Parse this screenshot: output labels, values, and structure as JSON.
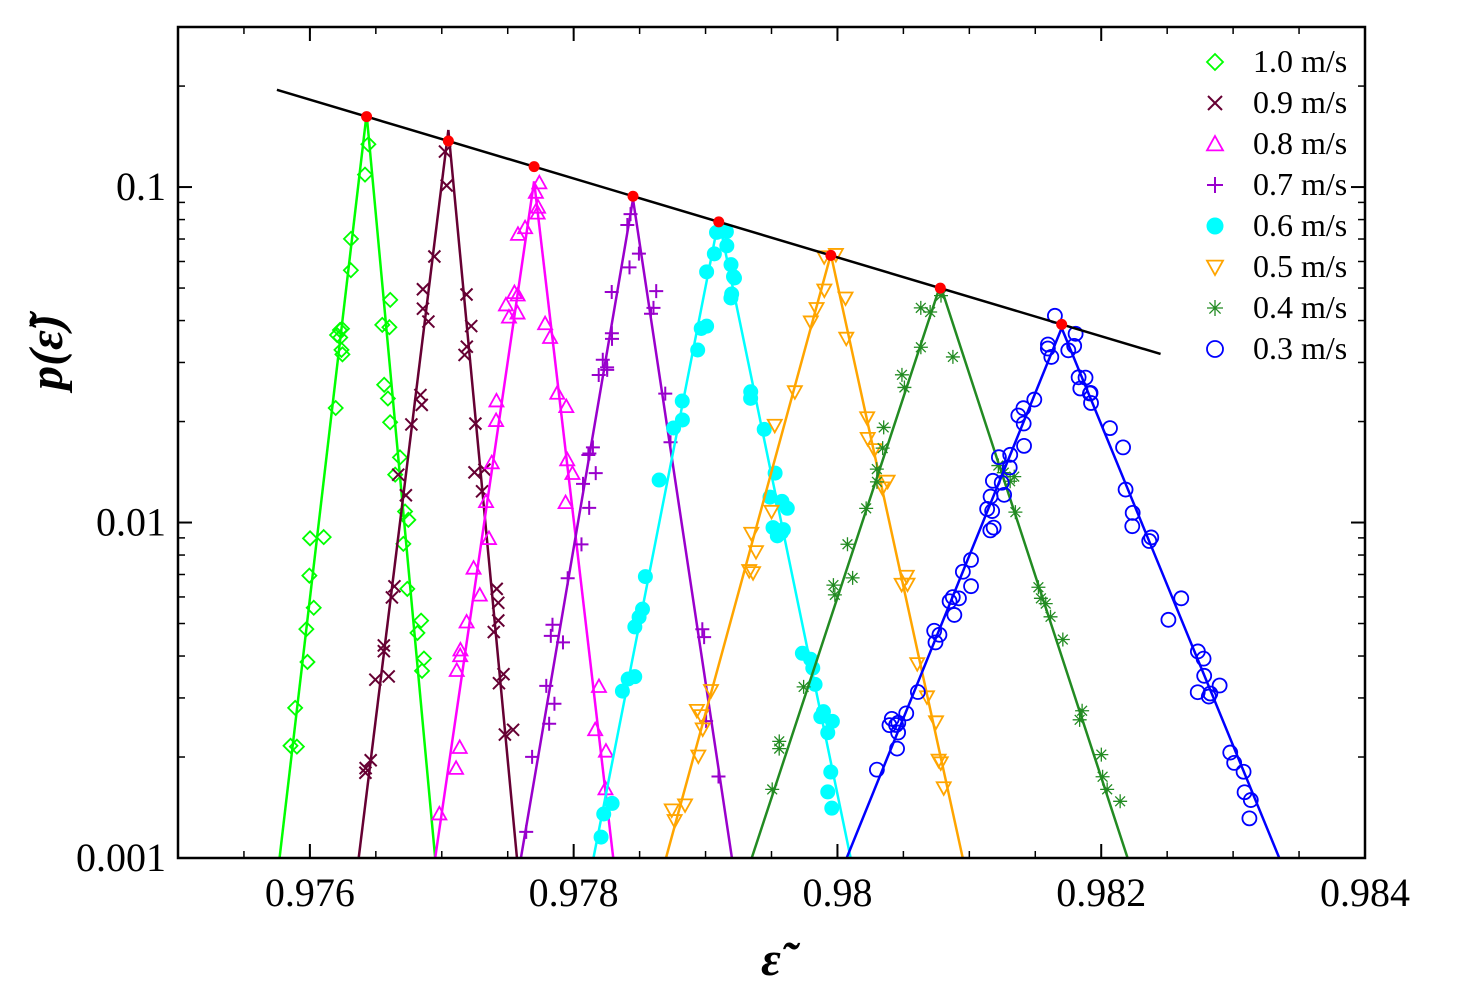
{
  "chart_data": {
    "type": "scatter",
    "xlabel": "ε̃",
    "ylabel": "p(ε̃)",
    "xlim": [
      0.975,
      0.984
    ],
    "ylim": [
      0.001,
      0.3
    ],
    "yscale": "log",
    "x_ticks": [
      0.976,
      0.978,
      0.98,
      0.982,
      0.984
    ],
    "x_tick_labels": [
      "0.976",
      "0.978",
      "0.98",
      "0.982",
      "0.984"
    ],
    "y_ticks": [
      0.001,
      0.01,
      0.1
    ],
    "y_tick_labels": [
      "0.001",
      "0.01",
      "0.1"
    ],
    "grid": false,
    "legend_position": "top-right",
    "envelope_line": {
      "color": "#000000",
      "x": [
        0.97575,
        0.98245
      ],
      "y": [
        0.195,
        0.0318
      ]
    },
    "peak_markers_color": "#ff0000",
    "series": [
      {
        "name": "1.0 m/s",
        "color": "#00ff00",
        "marker": "diamond",
        "peak_x": 0.97643,
        "peak_y": 0.165,
        "left_x0": 0.97577,
        "right_x0": 0.97695
      },
      {
        "name": "0.9 m/s",
        "color": "#660033",
        "marker": "x",
        "peak_x": 0.97705,
        "peak_y": 0.148,
        "left_x0": 0.97637,
        "right_x0": 0.97757
      },
      {
        "name": "0.8 m/s",
        "color": "#ff00ff",
        "marker": "triangle",
        "peak_x": 0.9777,
        "peak_y": 0.104,
        "left_x0": 0.97695,
        "right_x0": 0.9783
      },
      {
        "name": "0.7 m/s",
        "color": "#9900cc",
        "marker": "plus",
        "peak_x": 0.97845,
        "peak_y": 0.092,
        "left_x0": 0.9776,
        "right_x0": 0.9792
      },
      {
        "name": "0.6 m/s",
        "color": "#00ffff",
        "marker": "circle-filled",
        "peak_x": 0.9791,
        "peak_y": 0.08,
        "left_x0": 0.97815,
        "right_x0": 0.9801
      },
      {
        "name": "0.5 m/s",
        "color": "#ffa500",
        "marker": "triangle-down",
        "peak_x": 0.97995,
        "peak_y": 0.063,
        "left_x0": 0.9787,
        "right_x0": 0.98095
      },
      {
        "name": "0.4 m/s",
        "color": "#228b22",
        "marker": "star",
        "peak_x": 0.98078,
        "peak_y": 0.051,
        "left_x0": 0.97935,
        "right_x0": 0.9822
      },
      {
        "name": "0.3 m/s",
        "color": "#0000ff",
        "marker": "circle-open",
        "peak_x": 0.9817,
        "peak_y": 0.038,
        "left_x0": 0.98007,
        "right_x0": 0.98335
      }
    ]
  }
}
